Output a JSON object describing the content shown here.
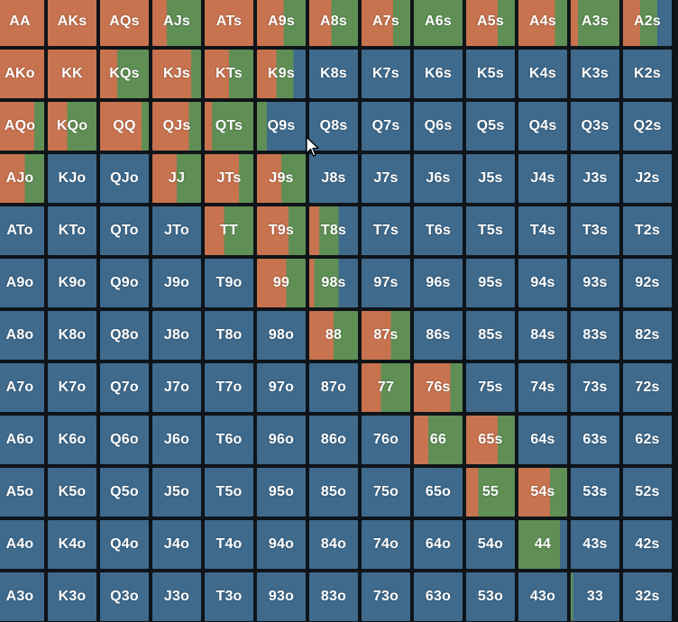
{
  "colors": {
    "raise": "#c8734f",
    "call": "#5f8f55",
    "fold": "#3f6a8c"
  },
  "grid": {
    "rows": [
      [
        {
          "label": "AA",
          "raise": 100,
          "call": 0
        },
        {
          "label": "AKs",
          "raise": 100,
          "call": 0
        },
        {
          "label": "AQs",
          "raise": 100,
          "call": 0
        },
        {
          "label": "AJs",
          "raise": 30,
          "call": 70
        },
        {
          "label": "ATs",
          "raise": 100,
          "call": 0
        },
        {
          "label": "A9s",
          "raise": 55,
          "call": 45
        },
        {
          "label": "A8s",
          "raise": 45,
          "call": 55
        },
        {
          "label": "A7s",
          "raise": 65,
          "call": 35
        },
        {
          "label": "A6s",
          "raise": 0,
          "call": 100
        },
        {
          "label": "A5s",
          "raise": 65,
          "call": 35
        },
        {
          "label": "A4s",
          "raise": 75,
          "call": 25
        },
        {
          "label": "A3s",
          "raise": 15,
          "call": 85
        },
        {
          "label": "A2s",
          "raise": 35,
          "call": 35
        }
      ],
      [
        {
          "label": "AKo",
          "raise": 100,
          "call": 0
        },
        {
          "label": "KK",
          "raise": 100,
          "call": 0
        },
        {
          "label": "KQs",
          "raise": 35,
          "call": 65
        },
        {
          "label": "KJs",
          "raise": 80,
          "call": 20
        },
        {
          "label": "KTs",
          "raise": 50,
          "call": 50
        },
        {
          "label": "K9s",
          "raise": 40,
          "call": 35
        },
        {
          "label": "K8s",
          "raise": 0,
          "call": 0
        },
        {
          "label": "K7s",
          "raise": 0,
          "call": 0
        },
        {
          "label": "K6s",
          "raise": 0,
          "call": 0
        },
        {
          "label": "K5s",
          "raise": 0,
          "call": 0
        },
        {
          "label": "K4s",
          "raise": 0,
          "call": 0
        },
        {
          "label": "K3s",
          "raise": 0,
          "call": 0
        },
        {
          "label": "K2s",
          "raise": 0,
          "call": 0
        }
      ],
      [
        {
          "label": "AQo",
          "raise": 80,
          "call": 20
        },
        {
          "label": "KQo",
          "raise": 40,
          "call": 60
        },
        {
          "label": "QQ",
          "raise": 85,
          "call": 15
        },
        {
          "label": "QJs",
          "raise": 75,
          "call": 25
        },
        {
          "label": "QTs",
          "raise": 15,
          "call": 85
        },
        {
          "label": "Q9s",
          "raise": 0,
          "call": 20
        },
        {
          "label": "Q8s",
          "raise": 0,
          "call": 0
        },
        {
          "label": "Q7s",
          "raise": 0,
          "call": 0
        },
        {
          "label": "Q6s",
          "raise": 0,
          "call": 0
        },
        {
          "label": "Q5s",
          "raise": 0,
          "call": 0
        },
        {
          "label": "Q4s",
          "raise": 0,
          "call": 0
        },
        {
          "label": "Q3s",
          "raise": 0,
          "call": 0
        },
        {
          "label": "Q2s",
          "raise": 0,
          "call": 0
        }
      ],
      [
        {
          "label": "AJo",
          "raise": 60,
          "call": 40
        },
        {
          "label": "KJo",
          "raise": 0,
          "call": 0
        },
        {
          "label": "QJo",
          "raise": 0,
          "call": 0
        },
        {
          "label": "JJ",
          "raise": 50,
          "call": 50
        },
        {
          "label": "JTs",
          "raise": 70,
          "call": 30
        },
        {
          "label": "J9s",
          "raise": 50,
          "call": 50
        },
        {
          "label": "J8s",
          "raise": 0,
          "call": 0
        },
        {
          "label": "J7s",
          "raise": 0,
          "call": 0
        },
        {
          "label": "J6s",
          "raise": 0,
          "call": 0
        },
        {
          "label": "J5s",
          "raise": 0,
          "call": 0
        },
        {
          "label": "J4s",
          "raise": 0,
          "call": 0
        },
        {
          "label": "J3s",
          "raise": 0,
          "call": 0
        },
        {
          "label": "J2s",
          "raise": 0,
          "call": 0
        }
      ],
      [
        {
          "label": "ATo",
          "raise": 0,
          "call": 0
        },
        {
          "label": "KTo",
          "raise": 0,
          "call": 0
        },
        {
          "label": "QTo",
          "raise": 0,
          "call": 0
        },
        {
          "label": "JTo",
          "raise": 0,
          "call": 0
        },
        {
          "label": "TT",
          "raise": 40,
          "call": 60
        },
        {
          "label": "T9s",
          "raise": 65,
          "call": 35
        },
        {
          "label": "T8s",
          "raise": 20,
          "call": 40
        },
        {
          "label": "T7s",
          "raise": 0,
          "call": 0
        },
        {
          "label": "T6s",
          "raise": 0,
          "call": 0
        },
        {
          "label": "T5s",
          "raise": 0,
          "call": 0
        },
        {
          "label": "T4s",
          "raise": 0,
          "call": 0
        },
        {
          "label": "T3s",
          "raise": 0,
          "call": 0
        },
        {
          "label": "T2s",
          "raise": 0,
          "call": 0
        }
      ],
      [
        {
          "label": "A9o",
          "raise": 0,
          "call": 0
        },
        {
          "label": "K9o",
          "raise": 0,
          "call": 0
        },
        {
          "label": "Q9o",
          "raise": 0,
          "call": 0
        },
        {
          "label": "J9o",
          "raise": 0,
          "call": 0
        },
        {
          "label": "T9o",
          "raise": 0,
          "call": 0
        },
        {
          "label": "99",
          "raise": 60,
          "call": 40
        },
        {
          "label": "98s",
          "raise": 10,
          "call": 50
        },
        {
          "label": "97s",
          "raise": 0,
          "call": 0
        },
        {
          "label": "96s",
          "raise": 0,
          "call": 0
        },
        {
          "label": "95s",
          "raise": 0,
          "call": 0
        },
        {
          "label": "94s",
          "raise": 0,
          "call": 0
        },
        {
          "label": "93s",
          "raise": 0,
          "call": 0
        },
        {
          "label": "92s",
          "raise": 0,
          "call": 0
        }
      ],
      [
        {
          "label": "A8o",
          "raise": 0,
          "call": 0
        },
        {
          "label": "K8o",
          "raise": 0,
          "call": 0
        },
        {
          "label": "Q8o",
          "raise": 0,
          "call": 0
        },
        {
          "label": "J8o",
          "raise": 0,
          "call": 0
        },
        {
          "label": "T8o",
          "raise": 0,
          "call": 0
        },
        {
          "label": "98o",
          "raise": 0,
          "call": 0
        },
        {
          "label": "88",
          "raise": 50,
          "call": 50
        },
        {
          "label": "87s",
          "raise": 60,
          "call": 40
        },
        {
          "label": "86s",
          "raise": 0,
          "call": 0
        },
        {
          "label": "85s",
          "raise": 0,
          "call": 0
        },
        {
          "label": "84s",
          "raise": 0,
          "call": 0
        },
        {
          "label": "83s",
          "raise": 0,
          "call": 0
        },
        {
          "label": "82s",
          "raise": 0,
          "call": 0
        }
      ],
      [
        {
          "label": "A7o",
          "raise": 0,
          "call": 0
        },
        {
          "label": "K7o",
          "raise": 0,
          "call": 0
        },
        {
          "label": "Q7o",
          "raise": 0,
          "call": 0
        },
        {
          "label": "J7o",
          "raise": 0,
          "call": 0
        },
        {
          "label": "T7o",
          "raise": 0,
          "call": 0
        },
        {
          "label": "97o",
          "raise": 0,
          "call": 0
        },
        {
          "label": "87o",
          "raise": 0,
          "call": 0
        },
        {
          "label": "77",
          "raise": 40,
          "call": 60
        },
        {
          "label": "76s",
          "raise": 75,
          "call": 25
        },
        {
          "label": "75s",
          "raise": 0,
          "call": 0
        },
        {
          "label": "74s",
          "raise": 0,
          "call": 0
        },
        {
          "label": "73s",
          "raise": 0,
          "call": 0
        },
        {
          "label": "72s",
          "raise": 0,
          "call": 0
        }
      ],
      [
        {
          "label": "A6o",
          "raise": 0,
          "call": 0
        },
        {
          "label": "K6o",
          "raise": 0,
          "call": 0
        },
        {
          "label": "Q6o",
          "raise": 0,
          "call": 0
        },
        {
          "label": "J6o",
          "raise": 0,
          "call": 0
        },
        {
          "label": "T6o",
          "raise": 0,
          "call": 0
        },
        {
          "label": "96o",
          "raise": 0,
          "call": 0
        },
        {
          "label": "86o",
          "raise": 0,
          "call": 0
        },
        {
          "label": "76o",
          "raise": 0,
          "call": 0
        },
        {
          "label": "66",
          "raise": 30,
          "call": 70
        },
        {
          "label": "65s",
          "raise": 65,
          "call": 35
        },
        {
          "label": "64s",
          "raise": 0,
          "call": 0
        },
        {
          "label": "63s",
          "raise": 0,
          "call": 0
        },
        {
          "label": "62s",
          "raise": 0,
          "call": 0
        }
      ],
      [
        {
          "label": "A5o",
          "raise": 0,
          "call": 0
        },
        {
          "label": "K5o",
          "raise": 0,
          "call": 0
        },
        {
          "label": "Q5o",
          "raise": 0,
          "call": 0
        },
        {
          "label": "J5o",
          "raise": 0,
          "call": 0
        },
        {
          "label": "T5o",
          "raise": 0,
          "call": 0
        },
        {
          "label": "95o",
          "raise": 0,
          "call": 0
        },
        {
          "label": "85o",
          "raise": 0,
          "call": 0
        },
        {
          "label": "75o",
          "raise": 0,
          "call": 0
        },
        {
          "label": "65o",
          "raise": 0,
          "call": 0
        },
        {
          "label": "55",
          "raise": 25,
          "call": 75
        },
        {
          "label": "54s",
          "raise": 65,
          "call": 35
        },
        {
          "label": "53s",
          "raise": 0,
          "call": 0
        },
        {
          "label": "52s",
          "raise": 0,
          "call": 0
        }
      ],
      [
        {
          "label": "A4o",
          "raise": 0,
          "call": 0
        },
        {
          "label": "K4o",
          "raise": 0,
          "call": 0
        },
        {
          "label": "Q4o",
          "raise": 0,
          "call": 0
        },
        {
          "label": "J4o",
          "raise": 0,
          "call": 0
        },
        {
          "label": "T4o",
          "raise": 0,
          "call": 0
        },
        {
          "label": "94o",
          "raise": 0,
          "call": 0
        },
        {
          "label": "84o",
          "raise": 0,
          "call": 0
        },
        {
          "label": "74o",
          "raise": 0,
          "call": 0
        },
        {
          "label": "64o",
          "raise": 0,
          "call": 0
        },
        {
          "label": "54o",
          "raise": 0,
          "call": 0
        },
        {
          "label": "44",
          "raise": 0,
          "call": 85
        },
        {
          "label": "43s",
          "raise": 0,
          "call": 0
        },
        {
          "label": "42s",
          "raise": 0,
          "call": 0
        }
      ],
      [
        {
          "label": "A3o",
          "raise": 0,
          "call": 0
        },
        {
          "label": "K3o",
          "raise": 0,
          "call": 0
        },
        {
          "label": "Q3o",
          "raise": 0,
          "call": 0
        },
        {
          "label": "J3o",
          "raise": 0,
          "call": 0
        },
        {
          "label": "T3o",
          "raise": 0,
          "call": 0
        },
        {
          "label": "93o",
          "raise": 0,
          "call": 0
        },
        {
          "label": "83o",
          "raise": 0,
          "call": 0
        },
        {
          "label": "73o",
          "raise": 0,
          "call": 0
        },
        {
          "label": "63o",
          "raise": 0,
          "call": 0
        },
        {
          "label": "53o",
          "raise": 0,
          "call": 0
        },
        {
          "label": "43o",
          "raise": 0,
          "call": 0
        },
        {
          "label": "33",
          "raise": 0,
          "call": 5
        },
        {
          "label": "32s",
          "raise": 0,
          "call": 0
        }
      ]
    ]
  }
}
